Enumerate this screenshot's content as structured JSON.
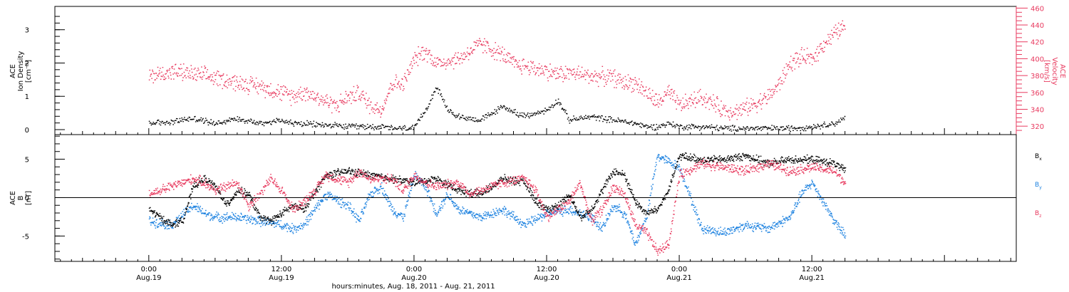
{
  "chart_data": [
    {
      "type": "scatter",
      "panel": "top",
      "ylabel_lines": [
        "ACE",
        "Ion Density",
        "[cm⁻³]"
      ],
      "y2label_lines": [
        "ACE",
        "Velocity",
        "[km/s]"
      ],
      "ylim": [
        -0.15,
        3.7
      ],
      "y_ticks": [
        0,
        1,
        2,
        3
      ],
      "y2lim": [
        310,
        462
      ],
      "y2_ticks": [
        320,
        340,
        360,
        380,
        400,
        420,
        440,
        460
      ],
      "series": [
        {
          "color": "#000000",
          "axis": "left",
          "x_hours": [
            0,
            2,
            4,
            6,
            8,
            10,
            12,
            13,
            16,
            18,
            20,
            21,
            22,
            24,
            25,
            26,
            27,
            28,
            30,
            31,
            32,
            34,
            36,
            37,
            38,
            40,
            42,
            44,
            45,
            46,
            47,
            48,
            50,
            52,
            54,
            56,
            57,
            58,
            60,
            62,
            63
          ],
          "values": [
            0.2,
            0.25,
            0.35,
            0.2,
            0.35,
            0.2,
            0.3,
            0.2,
            0.15,
            0.1,
            0.1,
            0.1,
            0.05,
            0.05,
            0.6,
            1.3,
            0.6,
            0.4,
            0.3,
            0.5,
            0.7,
            0.4,
            0.6,
            0.9,
            0.3,
            0.4,
            0.3,
            0.2,
            0.1,
            0.1,
            0.2,
            0.1,
            0.1,
            0.05,
            0.05,
            0.05,
            0.05,
            0.05,
            0.1,
            0.2,
            0.35
          ]
        },
        {
          "color": "#e83a5f",
          "axis": "right",
          "x_hours": [
            0,
            2,
            3,
            4,
            6,
            8,
            10,
            12,
            13,
            14,
            16,
            17,
            18,
            19,
            20,
            21,
            22,
            23,
            24,
            25,
            26,
            28,
            30,
            32,
            33,
            34,
            36,
            37,
            38,
            40,
            42,
            43,
            44,
            46,
            47,
            48,
            49,
            50,
            52,
            53,
            54,
            56,
            57,
            58,
            59,
            60,
            61,
            62,
            63
          ],
          "values": [
            380,
            385,
            384,
            382,
            378,
            372,
            368,
            360,
            356,
            362,
            350,
            345,
            355,
            360,
            345,
            340,
            372,
            370,
            400,
            410,
            395,
            400,
            418,
            405,
            394,
            392,
            386,
            382,
            384,
            380,
            378,
            372,
            372,
            348,
            360,
            345,
            350,
            355,
            340,
            338,
            342,
            355,
            370,
            395,
            402,
            400,
            418,
            430,
            440
          ]
        }
      ]
    },
    {
      "type": "scatter",
      "panel": "bottom",
      "ylabel_lines": [
        "ACE",
        "B",
        "[nT]"
      ],
      "ylim": [
        -8.3,
        8.2
      ],
      "y_ticks": [
        -5,
        0,
        5
      ],
      "zero_line": true,
      "legend_position": "right",
      "series": [
        {
          "name_main": "B",
          "name_sub": "x",
          "color": "#000000",
          "x_hours": [
            0,
            1,
            2,
            3,
            4,
            5,
            6,
            7,
            8,
            9,
            10,
            11,
            12,
            13,
            14,
            16,
            18,
            20,
            22,
            24,
            26,
            28,
            30,
            32,
            34,
            35,
            36,
            37,
            38,
            39,
            40,
            41,
            42,
            43,
            44,
            45,
            46,
            47,
            48,
            50,
            52,
            54,
            56,
            58,
            60,
            62,
            63
          ],
          "values": [
            -1.5,
            -2.5,
            -3.5,
            -3.0,
            1.5,
            2.5,
            1.5,
            -1.0,
            1.0,
            0.5,
            -2.5,
            -3.0,
            -2.0,
            -1.0,
            -1.5,
            3.0,
            3.5,
            3.0,
            2.5,
            2.0,
            2.5,
            1.0,
            0.5,
            2.5,
            2.0,
            -0.5,
            -1.5,
            -1.0,
            0.5,
            -2.5,
            -1.5,
            1.0,
            3.5,
            3.0,
            -0.5,
            -2.0,
            -1.5,
            1.0,
            5.5,
            5.0,
            5.0,
            5.5,
            4.5,
            5.0,
            5.0,
            4.5,
            3.5
          ]
        },
        {
          "name_main": "B",
          "name_sub": "y",
          "color": "#1d82e0",
          "x_hours": [
            0,
            2,
            4,
            5,
            6,
            8,
            10,
            12,
            13,
            14,
            16,
            18,
            19,
            20,
            21,
            22,
            23,
            24,
            25,
            26,
            27,
            28,
            30,
            32,
            34,
            36,
            38,
            40,
            41,
            42,
            43,
            44,
            45,
            46,
            48,
            50,
            52,
            54,
            56,
            58,
            59,
            60,
            62,
            63
          ],
          "values": [
            -3.0,
            -3.5,
            -1.0,
            -2.0,
            -2.5,
            -2.5,
            -3.0,
            -3.5,
            -4.0,
            -3.5,
            0.5,
            -1.0,
            -3.0,
            0.5,
            1.5,
            -1.5,
            -2.5,
            3.0,
            1.5,
            -2.0,
            0.5,
            -1.5,
            -2.5,
            -1.5,
            -3.5,
            -2.0,
            -1.5,
            -2.5,
            -4.0,
            -1.0,
            -2.0,
            -6.0,
            -2.5,
            5.5,
            4.0,
            -4.0,
            -4.5,
            -3.5,
            -4.0,
            -2.5,
            0.5,
            2.0,
            -3.0,
            -5.0
          ]
        },
        {
          "name_main": "B",
          "name_sub": "z",
          "color": "#e83a5f",
          "x_hours": [
            0,
            1,
            2,
            3,
            4,
            5,
            6,
            7,
            8,
            9,
            10,
            11,
            12,
            13,
            14,
            15,
            16,
            18,
            19,
            20,
            22,
            23,
            24,
            25,
            26,
            28,
            29,
            30,
            32,
            34,
            35,
            36,
            38,
            39,
            40,
            41,
            42,
            43,
            44,
            45,
            46,
            47,
            48,
            50,
            52,
            54,
            56,
            58,
            60,
            62,
            63
          ],
          "values": [
            0.5,
            1.0,
            1.5,
            2.0,
            2.5,
            2.0,
            1.0,
            1.5,
            2.0,
            -1.0,
            0.5,
            2.5,
            1.0,
            -1.5,
            -0.5,
            1.0,
            3.0,
            2.0,
            3.5,
            2.5,
            2.5,
            1.0,
            3.0,
            2.0,
            1.5,
            2.0,
            0.5,
            1.0,
            2.0,
            2.5,
            1.0,
            -2.5,
            -0.5,
            2.0,
            -3.0,
            -1.5,
            1.5,
            0.5,
            -3.5,
            -4.5,
            -7.0,
            -6.0,
            3.0,
            4.5,
            4.0,
            3.5,
            4.5,
            3.5,
            4.0,
            3.5,
            2.0
          ]
        }
      ]
    },
    {
      "type": "time-axis",
      "xlabel": "hours:minutes, Aug. 18, 2011 - Aug. 21, 2011",
      "xlim_hours": [
        -8.5,
        78.5
      ],
      "major_ticks": [
        {
          "x_hours": 0,
          "time": "0:00",
          "date": "Aug.19"
        },
        {
          "x_hours": 12,
          "time": "12:00",
          "date": "Aug.19"
        },
        {
          "x_hours": 24,
          "time": "0:00",
          "date": "Aug.20"
        },
        {
          "x_hours": 36,
          "time": "12:00",
          "date": "Aug.20"
        },
        {
          "x_hours": 48,
          "time": "0:00",
          "date": "Aug.21"
        },
        {
          "x_hours": 60,
          "time": "12:00",
          "date": "Aug.21"
        }
      ]
    }
  ]
}
